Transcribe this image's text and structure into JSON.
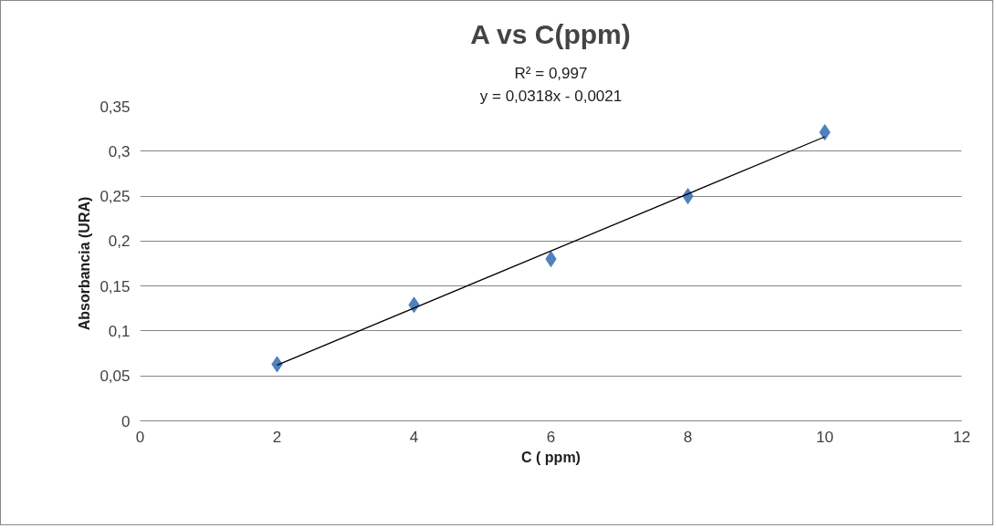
{
  "chart_data": {
    "type": "scatter",
    "title": "A vs C(ppm)",
    "xlabel": "C ( ppm)",
    "ylabel": "Absorbancia (URA)",
    "annotations": [
      "y = 0,0318x - 0,0021",
      "R² = 0,997"
    ],
    "series": [
      {
        "color": "#4f81bd",
        "x": [
          2,
          4,
          6,
          8,
          10
        ],
        "values": [
          0.063,
          0.129,
          0.18,
          0.25,
          0.321
        ],
        "marker": "diamond"
      },
      {
        "type": "line",
        "color": "#000000",
        "x": [
          2,
          10
        ],
        "values": [
          0.062,
          0.316
        ],
        "line_style": "solid"
      }
    ],
    "xlim": [
      0,
      12
    ],
    "xticks": [
      0,
      2,
      4,
      6,
      8,
      10,
      12
    ],
    "ylim": [
      0,
      0.35
    ],
    "yticks": [
      0,
      {
        "value": 0.05,
        "label": "0,05"
      },
      {
        "value": 0.1,
        "label": "0,1"
      },
      {
        "value": 0.15,
        "label": "0,15"
      },
      {
        "value": 0.2,
        "label": "0,2"
      },
      {
        "value": 0.25,
        "label": "0,25"
      },
      {
        "value": 0.3,
        "label": "0,3"
      },
      {
        "value": 0.35,
        "label": "0,35"
      }
    ],
    "grid": "y"
  }
}
